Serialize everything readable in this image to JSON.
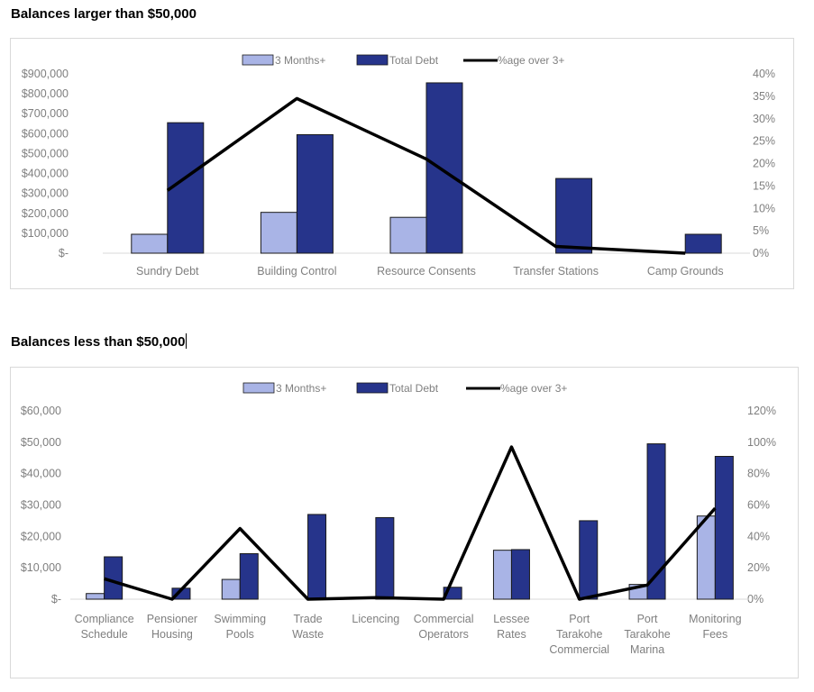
{
  "headings": {
    "top": "Balances larger than $50,000",
    "bottom": "Balances less than $50,000"
  },
  "colors": {
    "three_months": "#a9b4e6",
    "total_debt": "#26348b",
    "pct_line": "#000000",
    "axis_text": "#7f7f7f",
    "bar_outline": "#1a1a1a"
  },
  "chart_data": [
    {
      "type": "bar",
      "combo_line": true,
      "title": "",
      "legend_position": "top",
      "grid": false,
      "categories": [
        [
          "Sundry Debt"
        ],
        [
          "Building Control"
        ],
        [
          "Resource Consents"
        ],
        [
          "Transfer Stations"
        ],
        [
          "Camp Grounds"
        ]
      ],
      "series": [
        {
          "name": "3 Months+",
          "type": "bar",
          "axis": "left",
          "values": [
            95000,
            205000,
            180000,
            0,
            0
          ]
        },
        {
          "name": "Total Debt",
          "type": "bar",
          "axis": "left",
          "values": [
            655000,
            595000,
            855000,
            375000,
            95000
          ]
        },
        {
          "name": "%age over 3+",
          "type": "line",
          "axis": "right",
          "values": [
            14,
            34.5,
            21,
            1.5,
            0
          ]
        }
      ],
      "y_left": {
        "min": 0,
        "max": 900000,
        "step": 100000,
        "ticks": [
          "$-",
          "$100,000",
          "$200,000",
          "$300,000",
          "$400,000",
          "$500,000",
          "$600,000",
          "$700,000",
          "$800,000",
          "$900,000"
        ]
      },
      "y_right": {
        "min": 0,
        "max": 40,
        "step": 5,
        "ticks": [
          "0%",
          "5%",
          "10%",
          "15%",
          "20%",
          "25%",
          "30%",
          "35%",
          "40%"
        ]
      }
    },
    {
      "type": "bar",
      "combo_line": true,
      "title": "",
      "legend_position": "top",
      "grid": false,
      "categories": [
        [
          "Compliance",
          "Schedule"
        ],
        [
          "Pensioner",
          "Housing"
        ],
        [
          "Swimming",
          "Pools"
        ],
        [
          "Trade",
          "Waste"
        ],
        [
          "Licencing"
        ],
        [
          "Commercial",
          "Operators"
        ],
        [
          "Lessee",
          "Rates"
        ],
        [
          "Port",
          "Tarakohe",
          "Commercial"
        ],
        [
          "Port",
          "Tarakohe",
          "Marina"
        ],
        [
          "Monitoring",
          "Fees"
        ]
      ],
      "series": [
        {
          "name": "3 Months+",
          "type": "bar",
          "axis": "left",
          "values": [
            1800,
            0,
            6300,
            0,
            0,
            0,
            15600,
            0,
            4700,
            26500
          ]
        },
        {
          "name": "Total Debt",
          "type": "bar",
          "axis": "left",
          "values": [
            13500,
            3500,
            14500,
            27000,
            26000,
            3800,
            15800,
            25000,
            49500,
            45500
          ]
        },
        {
          "name": "%age over 3+",
          "type": "line",
          "axis": "right",
          "values": [
            13,
            0,
            45,
            0,
            1,
            0,
            97,
            0,
            9,
            58
          ]
        }
      ],
      "y_left": {
        "min": 0,
        "max": 60000,
        "step": 10000,
        "ticks": [
          "$-",
          "$10,000",
          "$20,000",
          "$30,000",
          "$40,000",
          "$50,000",
          "$60,000"
        ]
      },
      "y_right": {
        "min": 0,
        "max": 120,
        "step": 20,
        "ticks": [
          "0%",
          "20%",
          "40%",
          "60%",
          "80%",
          "100%",
          "120%"
        ]
      }
    }
  ]
}
